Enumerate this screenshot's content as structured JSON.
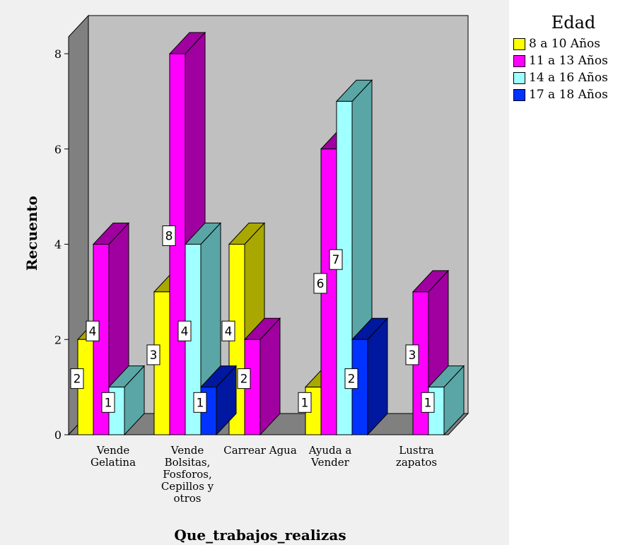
{
  "chart_data": {
    "type": "bar",
    "title": "",
    "xlabel": "Que_trabajos_realizas",
    "ylabel": "Recuento",
    "ylim": [
      0,
      8
    ],
    "yticks": [
      0,
      2,
      4,
      6,
      8
    ],
    "grid": false,
    "legend_title": "Edad",
    "legend_position": "top-right",
    "categories": [
      [
        "Vende",
        "Gelatina"
      ],
      [
        "Vende",
        "Bolsitas,",
        "Fosforos,",
        "Cepillos y",
        "otros"
      ],
      [
        "Carrear Agua"
      ],
      [
        "Ayuda a",
        "Vender"
      ],
      [
        "Lustra",
        "zapatos"
      ]
    ],
    "series": [
      {
        "name": "8 a 10 Años",
        "color": "#ffff00",
        "side_color": "#a8a800",
        "values": [
          2,
          3,
          4,
          1,
          null
        ]
      },
      {
        "name": "11 a 13 Años",
        "color": "#ff00ff",
        "side_color": "#a000a0",
        "values": [
          4,
          8,
          2,
          6,
          3
        ]
      },
      {
        "name": "14 a 16 Años",
        "color": "#a0ffff",
        "side_color": "#5aa6a6",
        "values": [
          1,
          4,
          null,
          7,
          1
        ]
      },
      {
        "name": "17 a 18 Años",
        "color": "#0033ff",
        "side_color": "#0018a0",
        "values": [
          null,
          1,
          null,
          2,
          null
        ]
      }
    ]
  }
}
